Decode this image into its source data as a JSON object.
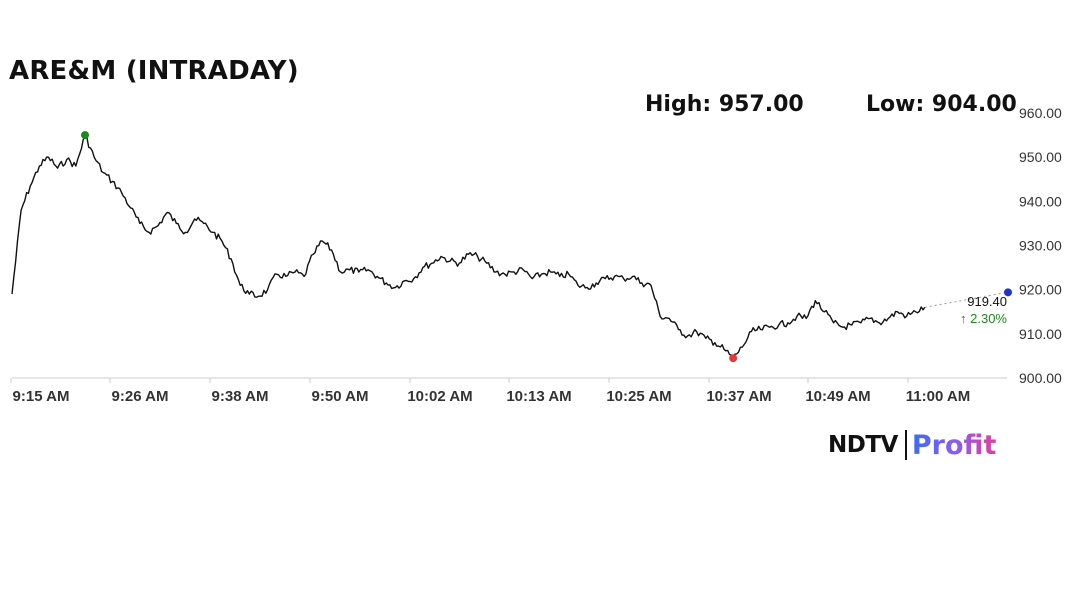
{
  "header": {
    "title": "ARE&M (INTRADAY)",
    "high_label": "High: 957.00",
    "low_label": "Low: 904.00"
  },
  "branding": {
    "ndtv": "NDTV",
    "profit": "Profit"
  },
  "chart_data": {
    "type": "line",
    "title": "ARE&M (INTRADAY)",
    "xlabel": "",
    "ylabel": "",
    "x_tick_labels": [
      "9:15 AM",
      "9:26 AM",
      "9:38 AM",
      "9:50 AM",
      "10:02 AM",
      "10:13 AM",
      "10:25 AM",
      "10:37 AM",
      "10:49 AM",
      "11:00 AM"
    ],
    "y_tick_labels": [
      "900.00",
      "910.00",
      "920.00",
      "930.00",
      "940.00",
      "950.00",
      "960.00"
    ],
    "ylim": [
      900,
      960
    ],
    "x_time_range": [
      "9:15 AM",
      "11:04 AM"
    ],
    "y_axis_side": "right",
    "grid": false,
    "series": [
      {
        "color": "#111111",
        "points": [
          [
            "9:15",
            919.0
          ],
          [
            "9:16",
            938.0
          ],
          [
            "9:17",
            943.5
          ],
          [
            "9:18",
            948.0
          ],
          [
            "9:19",
            950.0
          ],
          [
            "9:20",
            947.5
          ],
          [
            "9:21",
            949.5
          ],
          [
            "9:22",
            948.0
          ],
          [
            "9:23",
            955.0
          ],
          [
            "9:24",
            950.0
          ],
          [
            "9:25",
            946.5
          ],
          [
            "9:26",
            944.5
          ],
          [
            "9:27",
            942.0
          ],
          [
            "9:28",
            938.5
          ],
          [
            "9:29",
            935.0
          ],
          [
            "9:30",
            933.0
          ],
          [
            "9:31",
            934.5
          ],
          [
            "9:32",
            937.5
          ],
          [
            "9:33",
            935.0
          ],
          [
            "9:34",
            933.0
          ],
          [
            "9:35",
            936.0
          ],
          [
            "9:36",
            935.0
          ],
          [
            "9:37",
            933.0
          ],
          [
            "9:38",
            931.0
          ],
          [
            "9:39",
            927.0
          ],
          [
            "9:40",
            921.0
          ],
          [
            "9:41",
            919.0
          ],
          [
            "9:42",
            918.5
          ],
          [
            "9:43",
            920.0
          ],
          [
            "9:44",
            923.5
          ],
          [
            "9:45",
            923.0
          ],
          [
            "9:46",
            924.0
          ],
          [
            "9:47",
            923.0
          ],
          [
            "9:48",
            928.0
          ],
          [
            "9:49",
            931.0
          ],
          [
            "9:50",
            929.0
          ],
          [
            "9:51",
            924.0
          ],
          [
            "9:52",
            924.5
          ],
          [
            "9:53",
            924.0
          ],
          [
            "9:54",
            924.5
          ],
          [
            "9:55",
            923.0
          ],
          [
            "9:56",
            921.5
          ],
          [
            "9:57",
            920.5
          ],
          [
            "9:58",
            922.0
          ],
          [
            "9:59",
            922.5
          ],
          [
            "10:00",
            925.0
          ],
          [
            "10:01",
            926.0
          ],
          [
            "10:02",
            927.5
          ],
          [
            "10:03",
            926.5
          ],
          [
            "10:04",
            926.0
          ],
          [
            "10:05",
            928.0
          ],
          [
            "10:06",
            927.5
          ],
          [
            "10:07",
            926.0
          ],
          [
            "10:08",
            924.0
          ],
          [
            "10:09",
            923.5
          ],
          [
            "10:10",
            924.0
          ],
          [
            "10:11",
            924.5
          ],
          [
            "10:12",
            922.5
          ],
          [
            "10:13",
            923.5
          ],
          [
            "10:14",
            924.0
          ],
          [
            "10:15",
            923.0
          ],
          [
            "10:16",
            923.5
          ],
          [
            "10:17",
            921.0
          ],
          [
            "10:18",
            920.5
          ],
          [
            "10:19",
            921.5
          ],
          [
            "10:20",
            922.5
          ],
          [
            "10:21",
            923.0
          ],
          [
            "10:22",
            922.5
          ],
          [
            "10:23",
            923.0
          ],
          [
            "10:24",
            921.5
          ],
          [
            "10:25",
            921.0
          ],
          [
            "10:26",
            914.0
          ],
          [
            "10:27",
            913.5
          ],
          [
            "10:28",
            911.0
          ],
          [
            "10:29",
            909.5
          ],
          [
            "10:30",
            910.5
          ],
          [
            "10:31",
            909.0
          ],
          [
            "10:32",
            908.0
          ],
          [
            "10:33",
            906.5
          ],
          [
            "10:34",
            904.5
          ],
          [
            "10:35",
            907.0
          ],
          [
            "10:36",
            910.5
          ],
          [
            "10:37",
            911.0
          ],
          [
            "10:38",
            911.5
          ],
          [
            "10:39",
            912.0
          ],
          [
            "10:40",
            912.5
          ],
          [
            "10:41",
            914.0
          ],
          [
            "10:42",
            913.5
          ],
          [
            "10:43",
            917.5
          ],
          [
            "10:44",
            915.0
          ],
          [
            "10:45",
            912.5
          ],
          [
            "10:46",
            911.5
          ],
          [
            "10:47",
            912.0
          ],
          [
            "10:48",
            912.5
          ],
          [
            "10:49",
            913.5
          ],
          [
            "10:50",
            912.5
          ],
          [
            "10:51",
            913.5
          ],
          [
            "10:52",
            915.0
          ],
          [
            "10:53",
            914.0
          ],
          [
            "10:54",
            915.0
          ],
          [
            "10:55",
            916.0
          ]
        ]
      }
    ],
    "markers": [
      {
        "name": "high",
        "time": "9:23",
        "value": 955.0,
        "color": "#1a8a1a"
      },
      {
        "name": "low",
        "time": "10:34",
        "value": 904.5,
        "color": "#e53935"
      },
      {
        "name": "current",
        "time": "11:04",
        "value": 919.4,
        "color": "#2233cc"
      }
    ],
    "last_price": "919.40",
    "change_text": "↑ 2.30%",
    "change_color": "#1a8a1a"
  }
}
